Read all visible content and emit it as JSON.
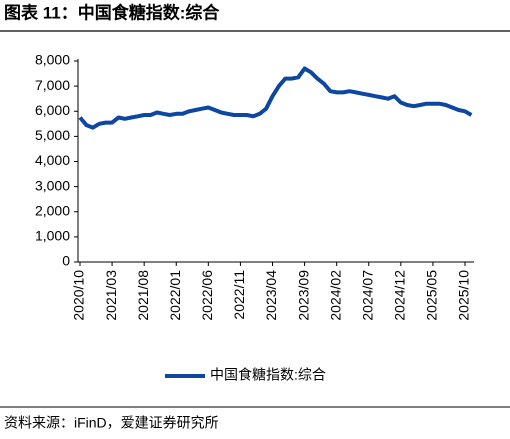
{
  "chart_data": {
    "type": "line",
    "title": "图表 11：中国食糖指数:综合",
    "source": "资料来源：iFinD，爱建证券研究所",
    "categories": [
      "2020/10",
      null,
      null,
      null,
      null,
      "2021/03",
      null,
      null,
      null,
      null,
      "2021/08",
      null,
      null,
      null,
      null,
      "2022/01",
      null,
      null,
      null,
      null,
      "2022/06",
      null,
      null,
      null,
      null,
      "2022/11",
      null,
      null,
      null,
      null,
      "2023/04",
      null,
      null,
      null,
      null,
      "2023/09",
      null,
      null,
      null,
      null,
      "2024/02",
      null,
      null,
      null,
      null,
      "2024/07",
      null,
      null,
      null,
      null,
      "2024/12",
      null,
      null,
      null,
      null,
      "2025/05",
      null,
      null,
      null,
      null,
      "2025/10",
      null
    ],
    "series": [
      {
        "name": "中国食糖指数:综合",
        "color": "#0d47a1",
        "values": [
          5750,
          5450,
          5350,
          5500,
          5550,
          5550,
          5750,
          5700,
          5750,
          5800,
          5850,
          5850,
          5950,
          5900,
          5850,
          5900,
          5900,
          6000,
          6050,
          6100,
          6150,
          6050,
          5950,
          5900,
          5850,
          5850,
          5850,
          5800,
          5900,
          6100,
          6600,
          7000,
          7300,
          7300,
          7350,
          7700,
          7550,
          7300,
          7100,
          6800,
          6750,
          6750,
          6800,
          6750,
          6700,
          6650,
          6600,
          6550,
          6500,
          6600,
          6350,
          6250,
          6200,
          6250,
          6300,
          6300,
          6300,
          6250,
          6150,
          6050,
          6000,
          5850
        ]
      }
    ],
    "ylim": [
      0,
      8000
    ],
    "yticks": [
      0,
      {
        "value": 1000,
        "label": "1,000"
      },
      {
        "value": 2000,
        "label": "2,000"
      },
      {
        "value": 3000,
        "label": "3,000"
      },
      {
        "value": 4000,
        "label": "4,000"
      },
      {
        "value": 5000,
        "label": "5,000"
      },
      {
        "value": 6000,
        "label": "6,000"
      },
      {
        "value": 7000,
        "label": "7,000"
      },
      {
        "value": 8000,
        "label": "8,000"
      }
    ],
    "legend": "bottom"
  }
}
